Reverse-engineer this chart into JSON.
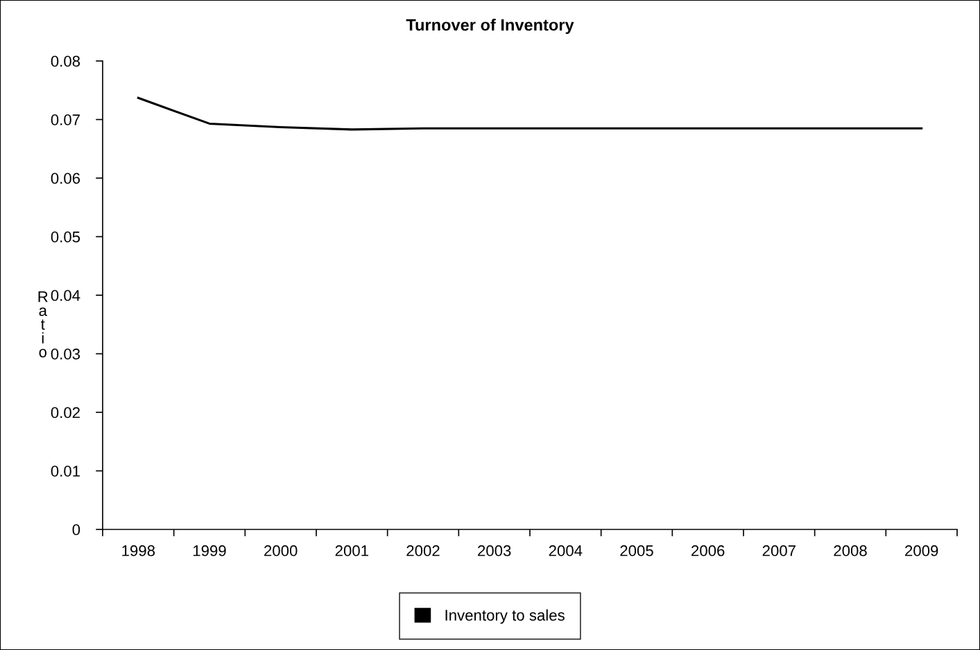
{
  "chart_data": {
    "type": "line",
    "title": "Turnover of Inventory",
    "ylabel": "Ratio",
    "categories": [
      "1998",
      "1999",
      "2000",
      "2001",
      "2002",
      "2003",
      "2004",
      "2005",
      "2006",
      "2007",
      "2008",
      "2009"
    ],
    "series": [
      {
        "name": "Inventory to sales",
        "color": "#000000",
        "values": [
          0.0737,
          0.0693,
          0.0687,
          0.0683,
          0.0685,
          0.0685,
          0.0685,
          0.0685,
          0.0685,
          0.0685,
          0.0685,
          0.0685
        ]
      }
    ],
    "ylim": [
      0,
      0.08
    ],
    "yticks": [
      0,
      0.01,
      0.02,
      0.03,
      0.04,
      0.05,
      0.06,
      0.07,
      0.08
    ],
    "grid": false,
    "legend": "bottom",
    "marker": "none",
    "line_style": "solid"
  }
}
